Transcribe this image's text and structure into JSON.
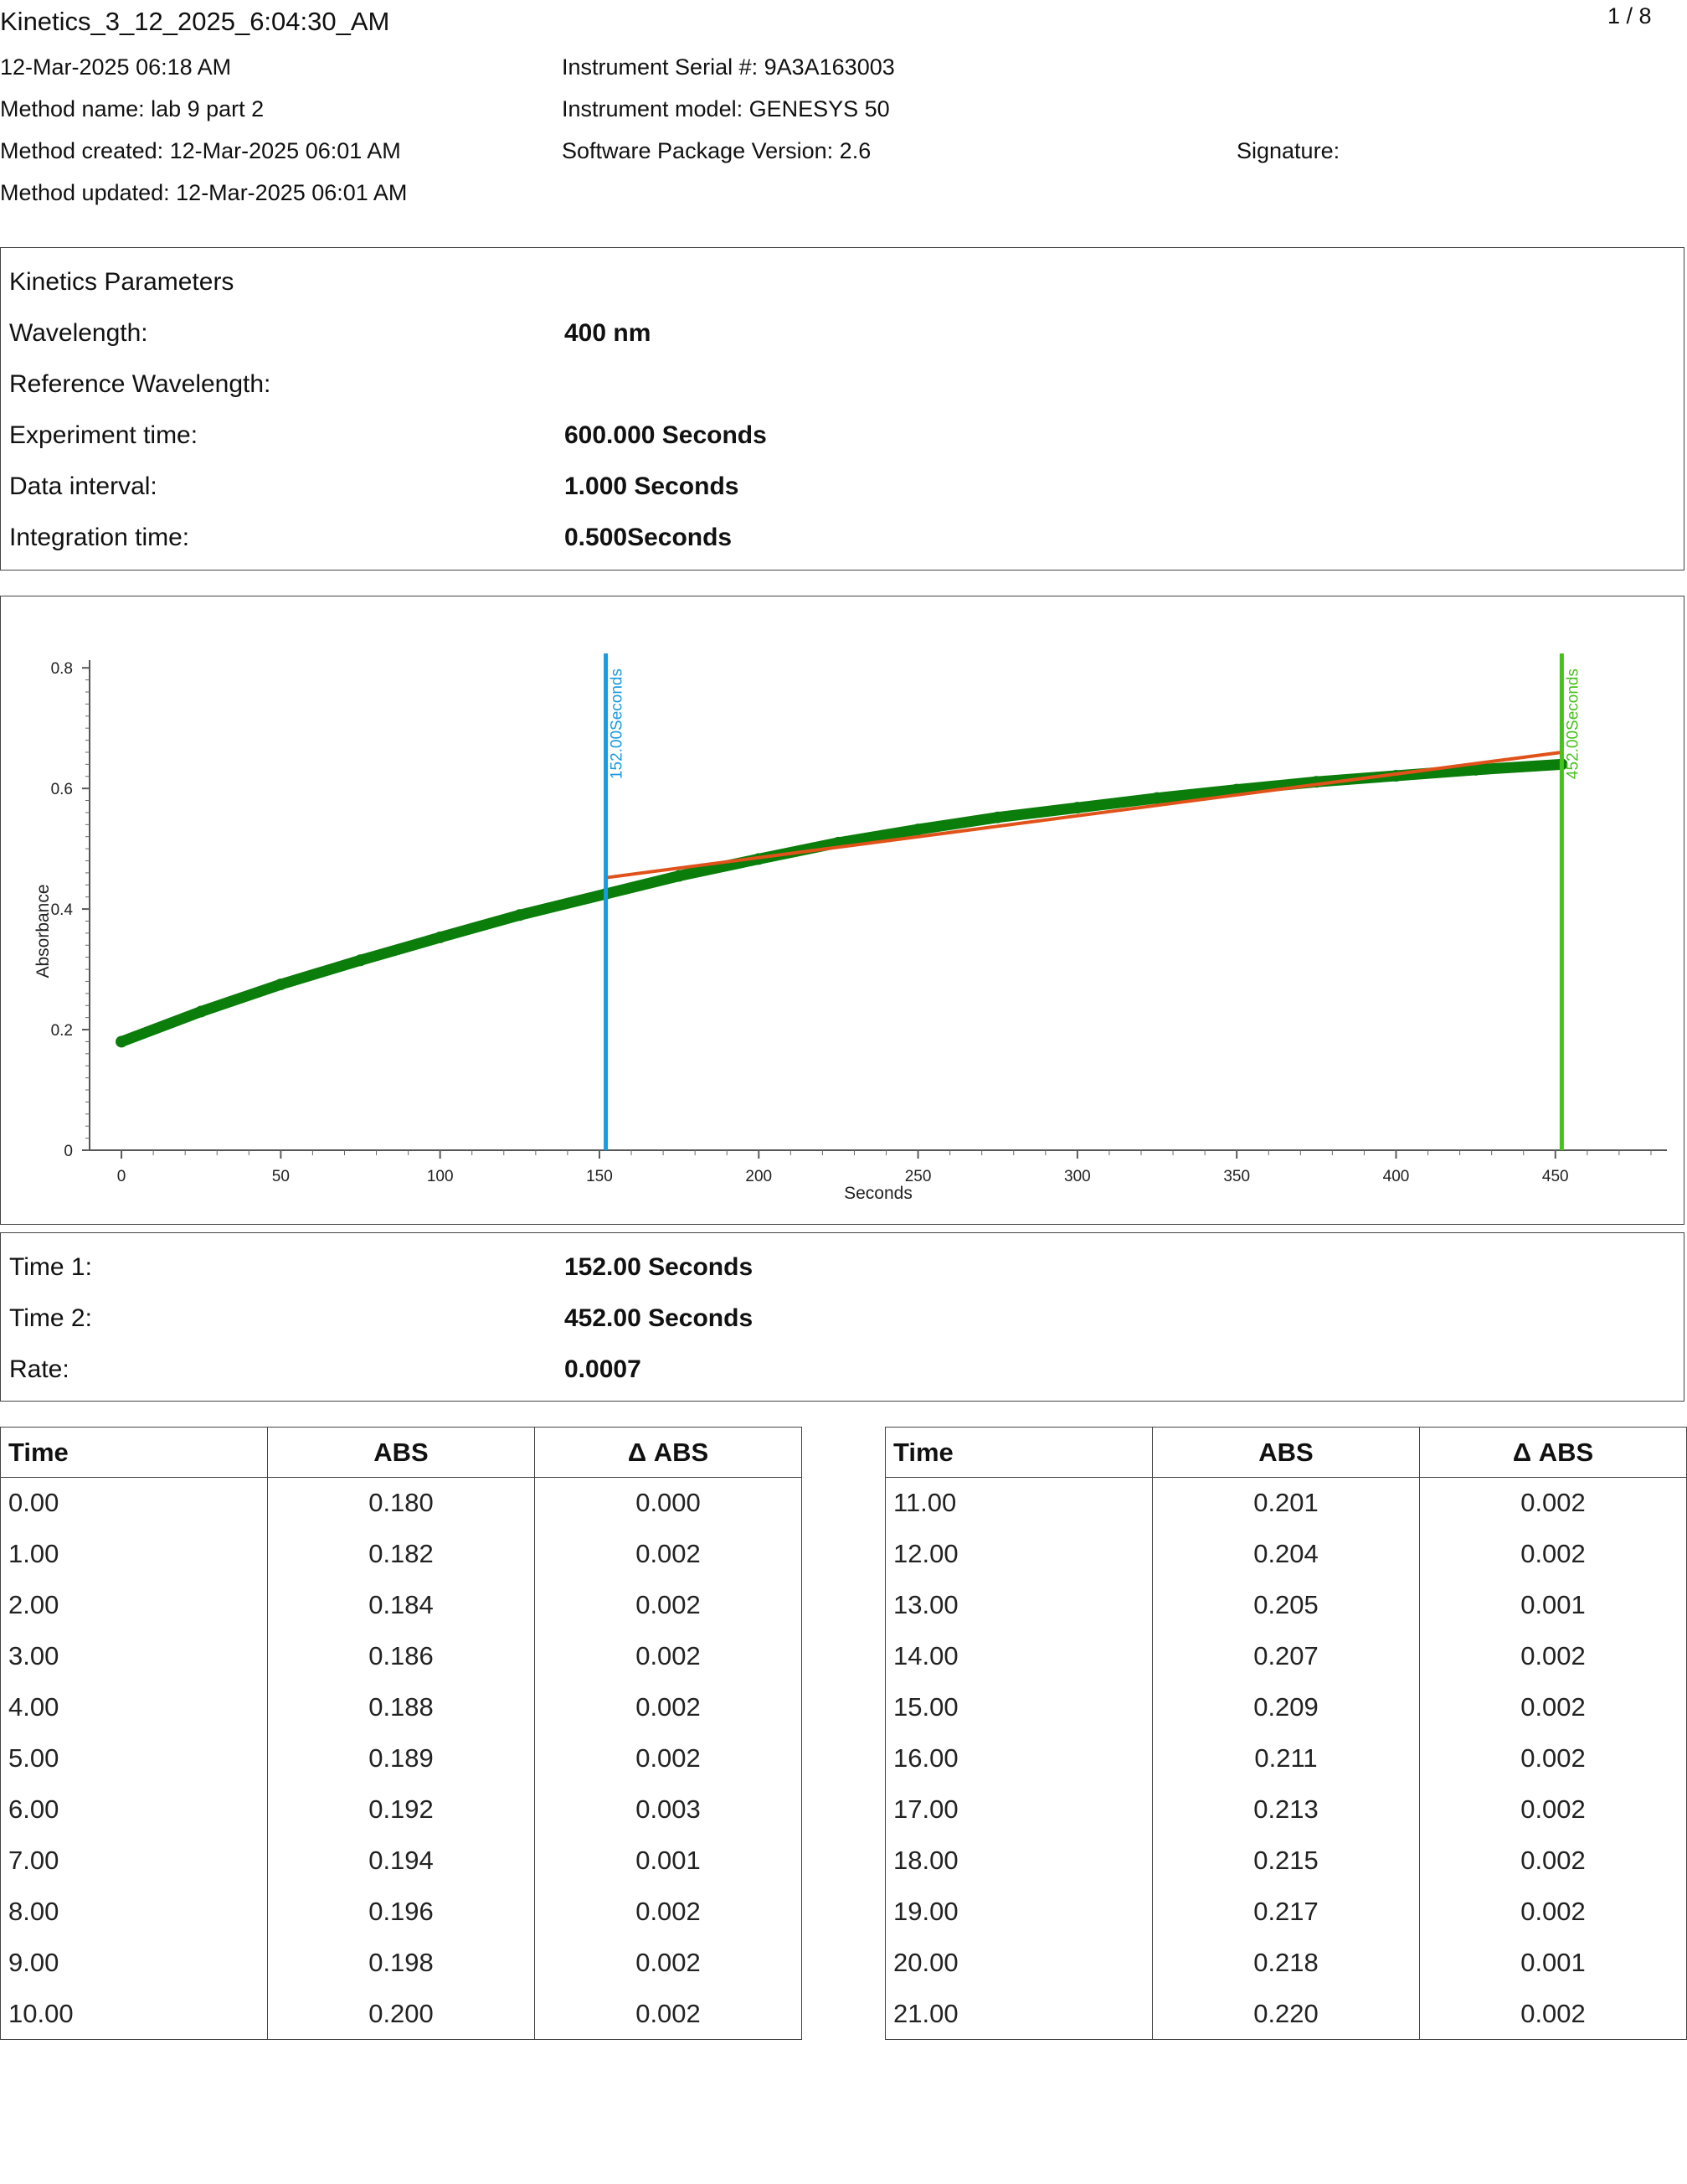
{
  "header": {
    "title": "Kinetics_3_12_2025_6:04:30_AM",
    "page": "1 / 8",
    "date": "12-Mar-2025 06:18 AM",
    "method_name": "Method name: lab 9 part 2",
    "method_created": "Method created: 12-Mar-2025 06:01 AM",
    "method_updated": "Method updated: 12-Mar-2025 06:01 AM",
    "serial": "Instrument Serial #: 9A3A163003",
    "model": "Instrument model: GENESYS 50",
    "software": "Software Package Version: 2.6",
    "signature": "Signature:"
  },
  "params": {
    "heading": "Kinetics Parameters",
    "rows": [
      {
        "label": "Wavelength:",
        "value": "400 nm"
      },
      {
        "label": "Reference Wavelength:",
        "value": ""
      },
      {
        "label": "Experiment time:",
        "value": "600.000 Seconds"
      },
      {
        "label": "Data interval:",
        "value": "1.000 Seconds"
      },
      {
        "label": "Integration time:",
        "value": "0.500Seconds"
      }
    ]
  },
  "results": {
    "rows": [
      {
        "label": "Time 1:",
        "value": "152.00 Seconds"
      },
      {
        "label": "Time 2:",
        "value": "452.00 Seconds"
      },
      {
        "label": "Rate:",
        "value": "0.0007"
      }
    ]
  },
  "chart_data": {
    "type": "scatter",
    "xlabel": "Seconds",
    "ylabel": "Absorbance",
    "xlim": [
      -10,
      485
    ],
    "ylim": [
      0,
      0.81
    ],
    "xticks": [
      "0",
      "50",
      "100",
      "150",
      "200",
      "250",
      "300",
      "350",
      "400",
      "450"
    ],
    "yticks": [
      "0",
      "0.2",
      "0.4",
      "0.6",
      "0.8"
    ],
    "series": [
      {
        "values_x": [
          0,
          25,
          50,
          75,
          100,
          125,
          152,
          175,
          200,
          225,
          250,
          275,
          300,
          325,
          350,
          375,
          400,
          425,
          452
        ],
        "values_y": [
          0.18,
          0.23,
          0.275,
          0.315,
          0.353,
          0.39,
          0.425,
          0.455,
          0.483,
          0.51,
          0.532,
          0.552,
          0.568,
          0.584,
          0.598,
          0.611,
          0.621,
          0.631,
          0.64
        ],
        "color": "#0a7d0a"
      }
    ],
    "fit_line": {
      "x": [
        152,
        452
      ],
      "y": [
        0.452,
        0.66
      ],
      "color": "#e0521a"
    },
    "markers": [
      {
        "x": 152,
        "label": "152.00Seconds",
        "color": "#1a9be0"
      },
      {
        "x": 452,
        "label": "452.00Seconds",
        "color": "#47c21d"
      }
    ]
  },
  "table_left": {
    "headers": [
      "Time",
      "ABS",
      "Δ ABS"
    ],
    "rows": [
      [
        "0.00",
        "0.180",
        "0.000"
      ],
      [
        "1.00",
        "0.182",
        "0.002"
      ],
      [
        "2.00",
        "0.184",
        "0.002"
      ],
      [
        "3.00",
        "0.186",
        "0.002"
      ],
      [
        "4.00",
        "0.188",
        "0.002"
      ],
      [
        "5.00",
        "0.189",
        "0.002"
      ],
      [
        "6.00",
        "0.192",
        "0.003"
      ],
      [
        "7.00",
        "0.194",
        "0.001"
      ],
      [
        "8.00",
        "0.196",
        "0.002"
      ],
      [
        "9.00",
        "0.198",
        "0.002"
      ],
      [
        "10.00",
        "0.200",
        "0.002"
      ]
    ]
  },
  "table_right": {
    "headers": [
      "Time",
      "ABS",
      "Δ ABS"
    ],
    "rows": [
      [
        "11.00",
        "0.201",
        "0.002"
      ],
      [
        "12.00",
        "0.204",
        "0.002"
      ],
      [
        "13.00",
        "0.205",
        "0.001"
      ],
      [
        "14.00",
        "0.207",
        "0.002"
      ],
      [
        "15.00",
        "0.209",
        "0.002"
      ],
      [
        "16.00",
        "0.211",
        "0.002"
      ],
      [
        "17.00",
        "0.213",
        "0.002"
      ],
      [
        "18.00",
        "0.215",
        "0.002"
      ],
      [
        "19.00",
        "0.217",
        "0.002"
      ],
      [
        "20.00",
        "0.218",
        "0.001"
      ],
      [
        "21.00",
        "0.220",
        "0.002"
      ]
    ]
  }
}
